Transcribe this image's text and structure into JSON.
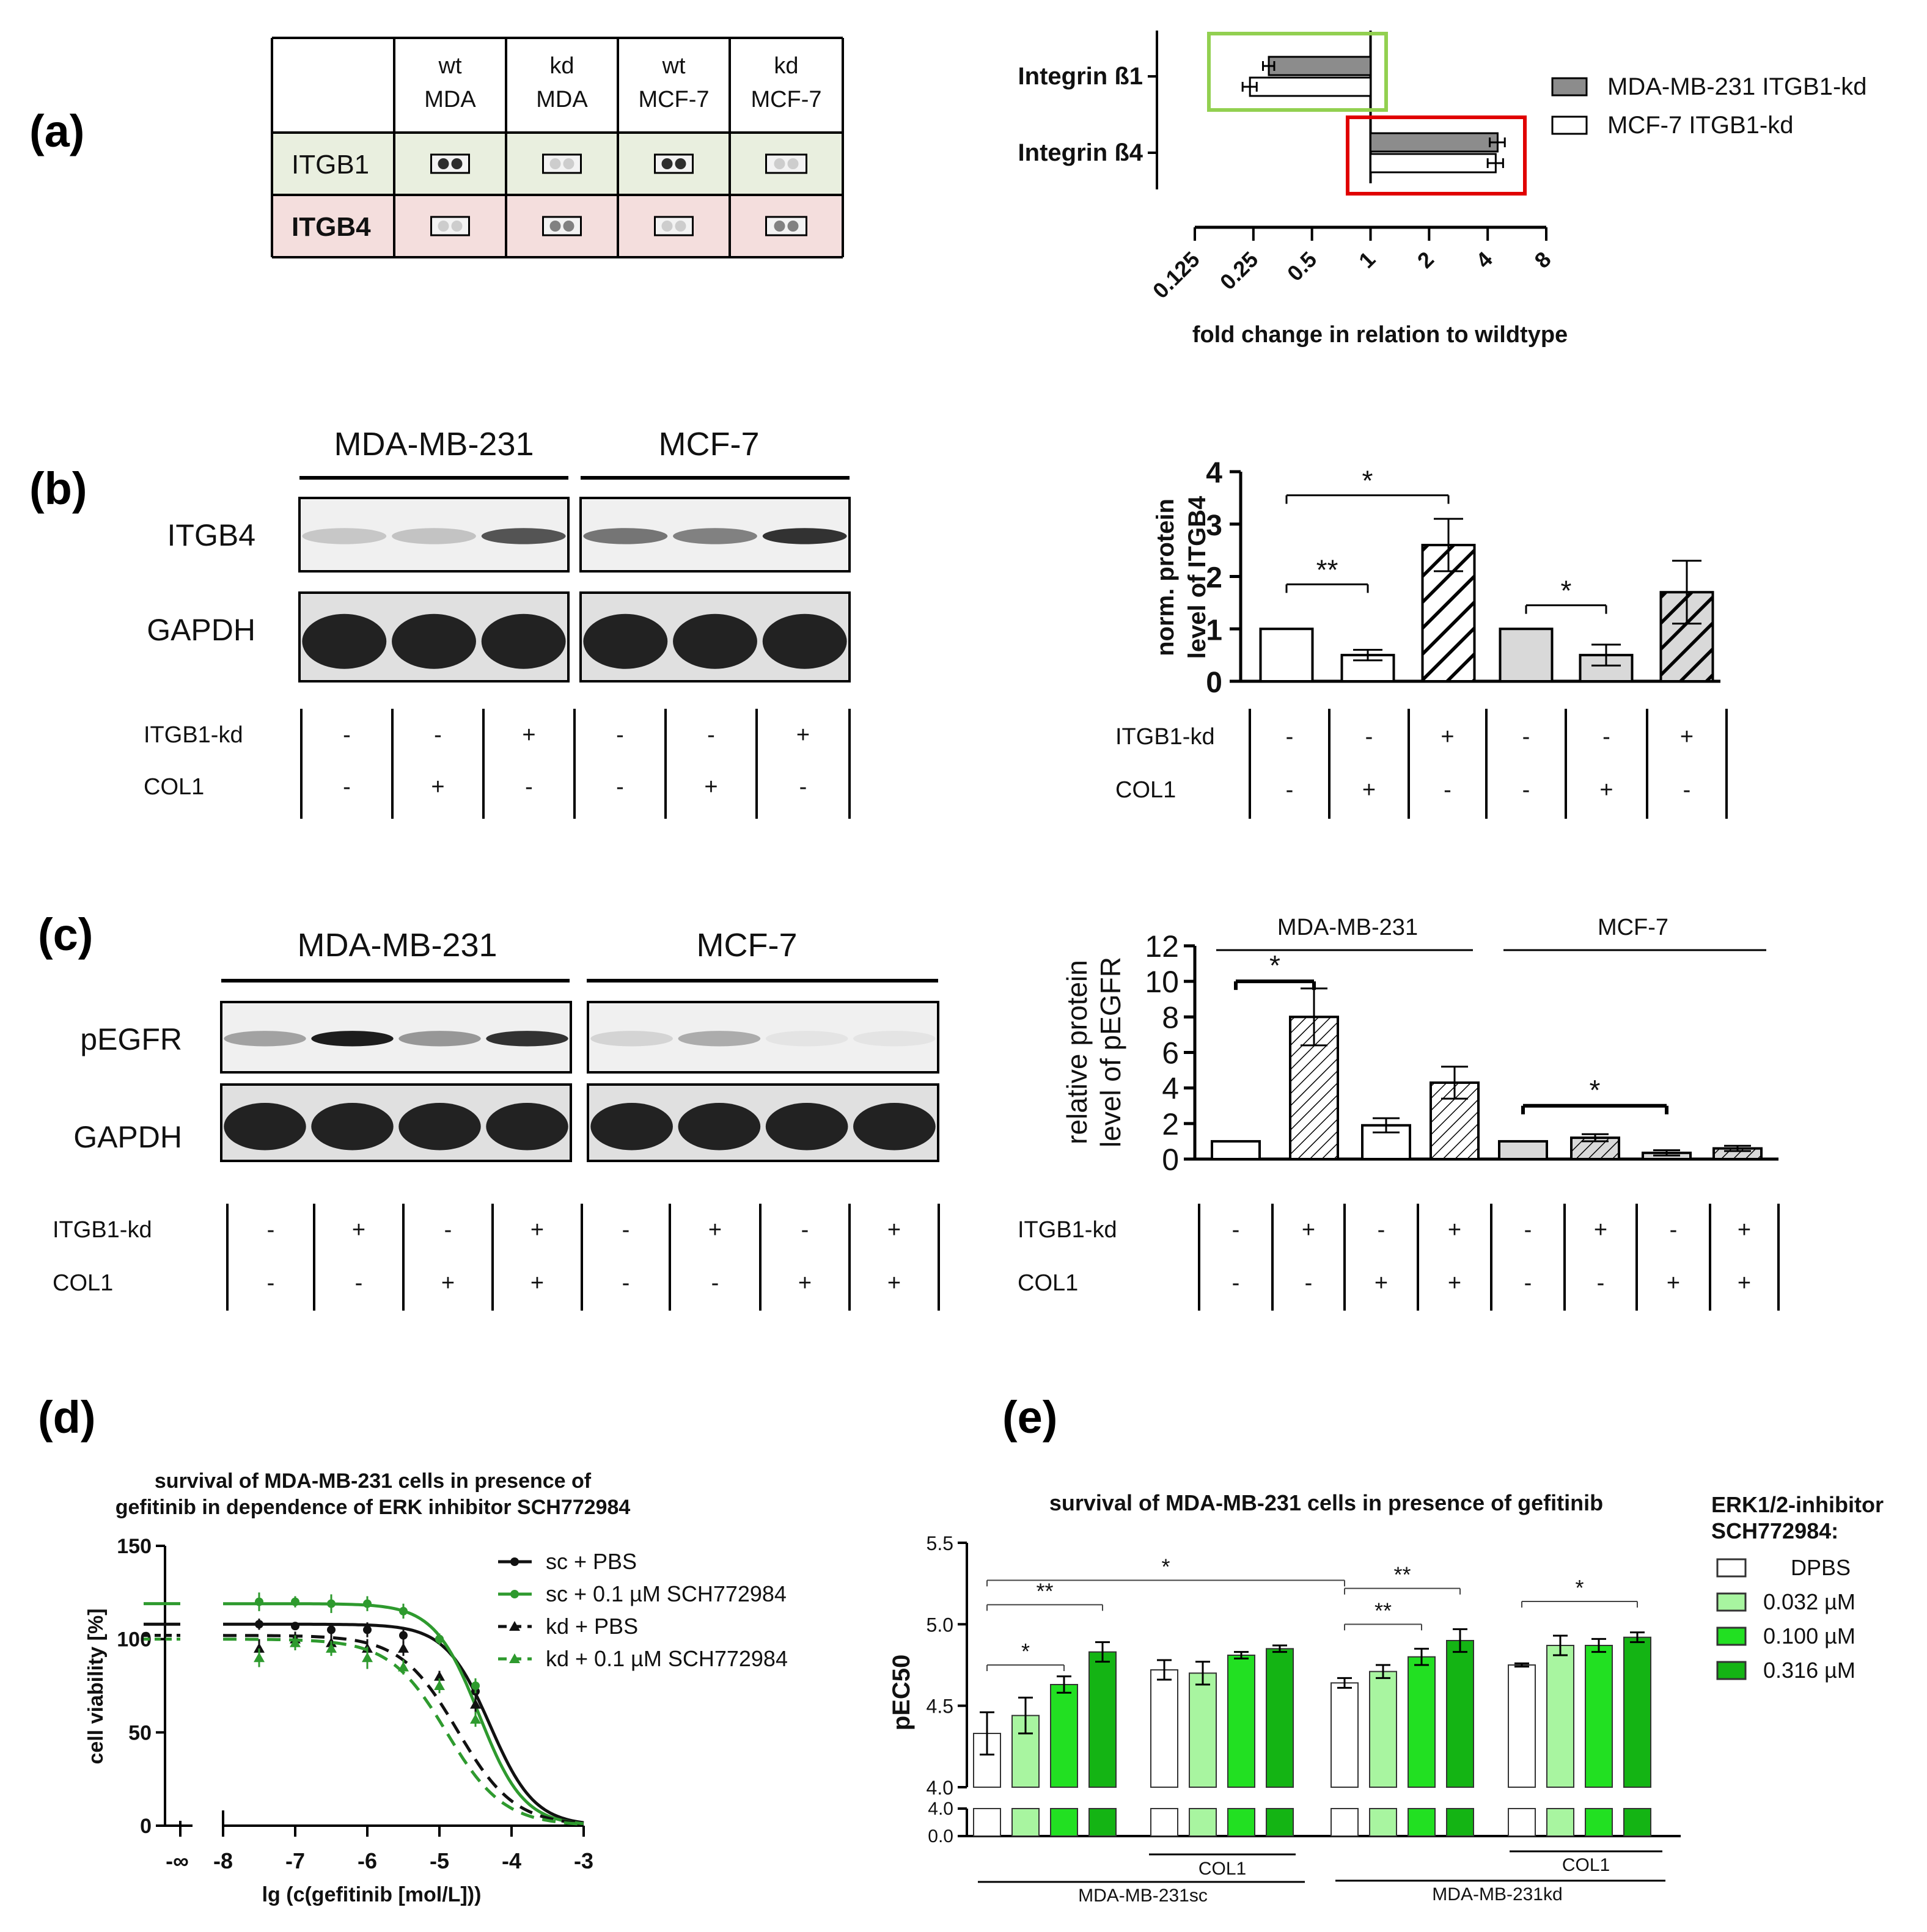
{
  "panels": {
    "a": "(a)",
    "b": "(b)",
    "c": "(c)",
    "d": "(d)",
    "e": "(e)"
  },
  "colors": {
    "mda": "#8c8c8c",
    "white": "#ffffff",
    "light_gray": "#d9d9d9",
    "itgb1_row": "#e9efdf",
    "itgb4_row": "#f4dedd",
    "green_box": "#92d050",
    "red_box": "#e00000",
    "green_curve": "#2e9a2e",
    "conc_low": "#a8f5a0",
    "conc_mid": "#22e022",
    "conc_high": "#14b414"
  },
  "a_table": {
    "headers": [
      {
        "l1": "wt",
        "l2": "MDA"
      },
      {
        "l1": "kd",
        "l2": "MDA"
      },
      {
        "l1": "wt",
        "l2": "MCF-7"
      },
      {
        "l1": "kd",
        "l2": "MCF-7"
      }
    ],
    "rows": [
      {
        "label": "ITGB1",
        "dots": [
          "strong",
          "weak",
          "strong",
          "weak"
        ]
      },
      {
        "label": "ITGB4",
        "dots": [
          "weak",
          "mid",
          "weak",
          "mid"
        ]
      }
    ]
  },
  "b_blot": {
    "groups": [
      "MDA-MB-231",
      "MCF-7"
    ],
    "rows": [
      "ITGB4",
      "GAPDH"
    ],
    "cond_labels": [
      "ITGB1-kd",
      "COL1"
    ],
    "itgb1_kd": [
      "-",
      "-",
      "+",
      "-",
      "-",
      "+"
    ],
    "col1": [
      "-",
      "+",
      "-",
      "-",
      "+",
      "-"
    ]
  },
  "c_blot": {
    "groups": [
      "MDA-MB-231",
      "MCF-7"
    ],
    "rows": [
      "pEGFR",
      "GAPDH"
    ],
    "cond_labels": [
      "ITGB1-kd",
      "COL1"
    ],
    "itgb1_kd": [
      "-",
      "+",
      "-",
      "+",
      "-",
      "+",
      "-",
      "+"
    ],
    "col1": [
      "-",
      "-",
      "+",
      "+",
      "-",
      "-",
      "+",
      "+"
    ]
  },
  "chart_data": [
    {
      "id": "a",
      "type": "bar",
      "orientation": "horizontal",
      "xlabel": "fold change in relation to wildtype",
      "xscale": "log2",
      "xlim": [
        0.125,
        8
      ],
      "xticks": [
        "0.125",
        "0.25",
        "0.5",
        "1",
        "2",
        "4",
        "8"
      ],
      "categories": [
        "Integrin ß1",
        "Integrin ß4"
      ],
      "series": [
        {
          "name": "MDA-MB-231 ITGB1-kd",
          "values": [
            0.3,
            4.5
          ],
          "errors": [
            0.02,
            0.4
          ]
        },
        {
          "name": "MCF-7 ITGB1-kd",
          "values": [
            0.24,
            4.4
          ],
          "errors": [
            0.02,
            0.4
          ]
        }
      ]
    },
    {
      "id": "b",
      "type": "bar",
      "ylabel_1": "norm. protein",
      "ylabel_2": "level of ITGB4",
      "ylim": [
        0,
        4
      ],
      "yticks": [
        "0",
        "1",
        "2",
        "3",
        "4"
      ],
      "values": [
        1.0,
        0.5,
        2.6,
        1.0,
        0.5,
        1.7
      ],
      "errors": [
        0,
        0.1,
        0.5,
        0,
        0.2,
        0.6
      ],
      "cond_labels": [
        "ITGB1-kd",
        "COL1"
      ],
      "itgb1_kd": [
        "-",
        "-",
        "+",
        "-",
        "-",
        "+"
      ],
      "col1": [
        "-",
        "+",
        "-",
        "-",
        "+",
        "-"
      ],
      "sig": [
        {
          "from": 0,
          "to": 2,
          "label": "*",
          "y": 3.55
        },
        {
          "from": 0,
          "to": 1,
          "label": "**",
          "y": 1.85
        },
        {
          "from": 3,
          "to": 4,
          "label": "*",
          "y": 1.45
        }
      ]
    },
    {
      "id": "c",
      "type": "bar",
      "ylabel_1": "relative protein",
      "ylabel_2": "level of pEGFR",
      "ylim": [
        0,
        12
      ],
      "yticks": [
        "0",
        "2",
        "4",
        "6",
        "8",
        "10",
        "12"
      ],
      "groups": [
        "MDA-MB-231",
        "MCF-7"
      ],
      "values": [
        1.0,
        8.0,
        1.9,
        4.3,
        1.0,
        1.2,
        0.35,
        0.6
      ],
      "errors": [
        0,
        1.6,
        0.4,
        0.9,
        0,
        0.2,
        0.15,
        0.15
      ],
      "cond_labels": [
        "ITGB1-kd",
        "COL1"
      ],
      "itgb1_kd": [
        "-",
        "+",
        "-",
        "+",
        "-",
        "+",
        "-",
        "+"
      ],
      "col1": [
        "-",
        "-",
        "+",
        "+",
        "-",
        "-",
        "+",
        "+"
      ],
      "sig": [
        {
          "from": 0,
          "to": 1,
          "label": "*",
          "y": 10.0
        },
        {
          "from": 4,
          "to": 6,
          "label": "*",
          "y": 3.0
        }
      ]
    },
    {
      "id": "d",
      "type": "line",
      "title_1": "survival of MDA-MB-231 cells in presence of",
      "title_2": "gefitinib in dependence of ERK inhibitor SCH772984",
      "xlabel": "lg (c(gefitinib [mol/L]))",
      "ylabel": "cell viability [%]",
      "xlim": [
        -8,
        -3
      ],
      "ylim": [
        0,
        150
      ],
      "xticks": [
        "-8",
        "-7",
        "-6",
        "-5",
        "-4",
        "-3"
      ],
      "yticks": [
        "0",
        "50",
        "100",
        "150"
      ],
      "x_neg_inf_label": "-∞",
      "x": [
        -7.5,
        -7.0,
        -6.5,
        -6.0,
        -5.5,
        -5.0,
        -4.5
      ],
      "series": [
        {
          "name": "sc + PBS",
          "top": 108,
          "ec50": -4.3,
          "hill": 1.4,
          "points": [
            108,
            107,
            105,
            105,
            102,
            100,
            72
          ],
          "errors": [
            3,
            2,
            3,
            4,
            3,
            3,
            4
          ]
        },
        {
          "name": "sc + 0.1 µM SCH772984",
          "top": 119,
          "ec50": -4.45,
          "hill": 1.4,
          "points": [
            120,
            120,
            119,
            119,
            115,
            100,
            75
          ],
          "errors": [
            5,
            3,
            5,
            4,
            4,
            3,
            4
          ]
        },
        {
          "name": "kd + PBS",
          "top": 102,
          "ec50": -4.75,
          "hill": 1.1,
          "points": [
            95,
            100,
            98,
            95,
            95,
            80,
            65
          ],
          "errors": [
            5,
            4,
            4,
            5,
            4,
            3,
            4
          ]
        },
        {
          "name": "kd + 0.1 µM SCH772984",
          "top": 100,
          "ec50": -4.9,
          "hill": 1.1,
          "points": [
            90,
            98,
            95,
            90,
            85,
            75,
            57
          ],
          "errors": [
            5,
            4,
            4,
            6,
            4,
            4,
            4
          ]
        }
      ]
    },
    {
      "id": "e",
      "type": "bar",
      "title": "survival of MDA-MB-231 cells in presence of gefitinib",
      "ylabel": "pEC50",
      "ylim": [
        4.0,
        5.5
      ],
      "yticks": [
        "4.0",
        "4.5",
        "5.0",
        "5.5"
      ],
      "broken_yticks": [
        "4.0",
        "0.0"
      ],
      "legend_title_1": "ERK1/2-inhibitor",
      "legend_title_2": "SCH772984:",
      "legend": [
        "DPBS",
        "0.032 µM",
        "0.100 µM",
        "0.316 µM"
      ],
      "groups": [
        {
          "name": "sc",
          "values": [
            4.33,
            4.44,
            4.63,
            4.83
          ],
          "errors": [
            0.13,
            0.11,
            0.05,
            0.06
          ]
        },
        {
          "name": "sc COL1",
          "values": [
            4.72,
            4.7,
            4.81,
            4.85
          ],
          "errors": [
            0.06,
            0.07,
            0.02,
            0.02
          ]
        },
        {
          "name": "kd",
          "values": [
            4.64,
            4.71,
            4.8,
            4.9
          ],
          "errors": [
            0.03,
            0.04,
            0.05,
            0.07
          ]
        },
        {
          "name": "kd COL1",
          "values": [
            4.75,
            4.87,
            4.87,
            4.92
          ],
          "errors": [
            0.01,
            0.06,
            0.04,
            0.03
          ]
        }
      ],
      "group_labels": [
        "COL1",
        "COL1",
        "MDA-MB-231sc",
        "MDA-MB-231kd"
      ],
      "sig": [
        {
          "g1": 0,
          "b1": 0,
          "g2": 2,
          "b2": 0,
          "label": "*",
          "y": 5.27
        },
        {
          "g1": 0,
          "b1": 0,
          "g2": 0,
          "b2": 3,
          "label": "**",
          "y": 5.12
        },
        {
          "g1": 0,
          "b1": 0,
          "g2": 0,
          "b2": 2,
          "label": "*",
          "y": 4.75
        },
        {
          "g1": 2,
          "b1": 0,
          "g2": 2,
          "b2": 3,
          "label": "**",
          "y": 5.22
        },
        {
          "g1": 2,
          "b1": 0,
          "g2": 2,
          "b2": 2,
          "label": "**",
          "y": 5.0
        },
        {
          "g1": 3,
          "b1": 0,
          "g2": 3,
          "b2": 3,
          "label": "*",
          "y": 5.14
        }
      ]
    }
  ]
}
